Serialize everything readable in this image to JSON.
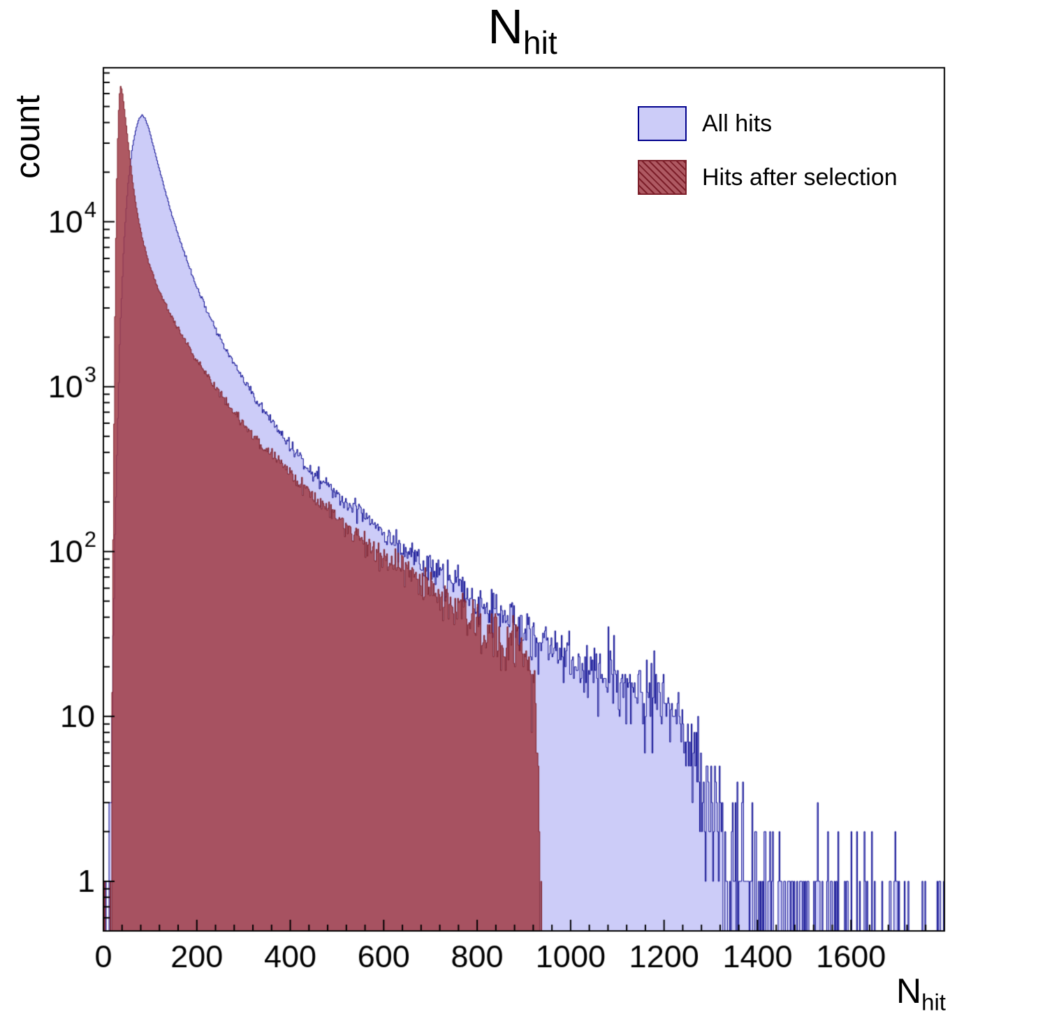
{
  "chart_data": {
    "type": "histogram",
    "title": "N_hit",
    "title_main": "N",
    "title_sub": "hit",
    "xlabel_main": "N",
    "xlabel_sub": "hit",
    "ylabel": "count",
    "x_axis": {
      "min": 0,
      "max": 1800,
      "major_ticks": [
        0,
        200,
        400,
        600,
        800,
        1000,
        1200,
        1400,
        1600
      ],
      "minor_tick_step": 40
    },
    "y_axis": {
      "scale": "log",
      "min": 0.5,
      "max": 86000,
      "tick_labels": [
        {
          "value": 1,
          "text": "1"
        },
        {
          "value": 10,
          "text": "10"
        },
        {
          "value": 100,
          "text": "10",
          "exp": "2"
        },
        {
          "value": 1000,
          "text": "10",
          "exp": "3"
        },
        {
          "value": 10000,
          "text": "10",
          "exp": "4"
        }
      ]
    },
    "legend": {
      "entries": [
        {
          "label": "All hits"
        },
        {
          "label": "Hits after selection"
        }
      ]
    },
    "bin_width": 2,
    "noise_seed": 42,
    "series": [
      {
        "name": "All hits",
        "fill_color": "#ccccf8",
        "edge_color": "#00008c",
        "fill_alpha": 1.0,
        "x_max": 1800,
        "peak": {
          "x": 83,
          "count": 44500
        },
        "envelope_points": [
          [
            8,
            0.3
          ],
          [
            14,
            2
          ],
          [
            20,
            25
          ],
          [
            28,
            300
          ],
          [
            36,
            2200
          ],
          [
            44,
            7500
          ],
          [
            52,
            16000
          ],
          [
            60,
            26000
          ],
          [
            68,
            35000
          ],
          [
            76,
            42000
          ],
          [
            83,
            44500
          ],
          [
            90,
            42000
          ],
          [
            98,
            36000
          ],
          [
            107,
            29000
          ],
          [
            117,
            22500
          ],
          [
            127,
            17500
          ],
          [
            137,
            13800
          ],
          [
            147,
            11000
          ],
          [
            158,
            8700
          ],
          [
            170,
            6900
          ],
          [
            182,
            5500
          ],
          [
            195,
            4400
          ],
          [
            210,
            3450
          ],
          [
            225,
            2750
          ],
          [
            240,
            2250
          ],
          [
            258,
            1780
          ],
          [
            276,
            1430
          ],
          [
            295,
            1160
          ],
          [
            315,
            940
          ],
          [
            335,
            775
          ],
          [
            355,
            645
          ],
          [
            378,
            525
          ],
          [
            400,
            440
          ],
          [
            425,
            365
          ],
          [
            450,
            305
          ],
          [
            475,
            258
          ],
          [
            500,
            220
          ],
          [
            525,
            190
          ],
          [
            550,
            180
          ],
          [
            575,
            155
          ],
          [
            600,
            134
          ],
          [
            625,
            116
          ],
          [
            650,
            101
          ],
          [
            675,
            89
          ],
          [
            700,
            79
          ],
          [
            725,
            70
          ],
          [
            750,
            63
          ],
          [
            775,
            56
          ],
          [
            800,
            50
          ],
          [
            825,
            45
          ],
          [
            850,
            41
          ],
          [
            875,
            37
          ],
          [
            900,
            33
          ],
          [
            925,
            30
          ],
          [
            950,
            28
          ],
          [
            975,
            25
          ],
          [
            1000,
            23
          ],
          [
            1040,
            20
          ],
          [
            1080,
            18
          ],
          [
            1120,
            16.5
          ],
          [
            1160,
            15
          ],
          [
            1200,
            14
          ],
          [
            1230,
            10
          ],
          [
            1255,
            7
          ],
          [
            1280,
            4.5
          ],
          [
            1305,
            3
          ],
          [
            1330,
            2
          ],
          [
            1360,
            1.4
          ],
          [
            1400,
            0.9
          ],
          [
            1450,
            0.55
          ],
          [
            1500,
            0.4
          ],
          [
            1550,
            0.3
          ],
          [
            1600,
            0.25
          ],
          [
            1650,
            0.2
          ],
          [
            1700,
            0.2
          ],
          [
            1750,
            0.25
          ],
          [
            1795,
            0.6
          ]
        ]
      },
      {
        "name": "Hits after selection",
        "fill_color": "#a03c46",
        "edge_color": "#7d1f2a",
        "fill_alpha": 0.85,
        "x_max": 960,
        "peak": {
          "x": 36,
          "count": 68000
        },
        "envelope_points": [
          [
            16,
            0.5
          ],
          [
            20,
            40
          ],
          [
            24,
            1500
          ],
          [
            28,
            14000
          ],
          [
            32,
            42000
          ],
          [
            36,
            68000
          ],
          [
            40,
            63000
          ],
          [
            45,
            48000
          ],
          [
            50,
            36000
          ],
          [
            56,
            25500
          ],
          [
            62,
            18200
          ],
          [
            70,
            12600
          ],
          [
            78,
            9400
          ],
          [
            87,
            7200
          ],
          [
            97,
            5700
          ],
          [
            107,
            4700
          ],
          [
            118,
            3900
          ],
          [
            130,
            3300
          ],
          [
            142,
            2800
          ],
          [
            155,
            2380
          ],
          [
            170,
            2000
          ],
          [
            185,
            1700
          ],
          [
            200,
            1460
          ],
          [
            220,
            1190
          ],
          [
            240,
            990
          ],
          [
            260,
            830
          ],
          [
            280,
            700
          ],
          [
            300,
            595
          ],
          [
            320,
            510
          ],
          [
            340,
            440
          ],
          [
            360,
            382
          ],
          [
            385,
            322
          ],
          [
            410,
            274
          ],
          [
            435,
            235
          ],
          [
            460,
            202
          ],
          [
            485,
            175
          ],
          [
            510,
            152
          ],
          [
            535,
            132
          ],
          [
            560,
            116
          ],
          [
            585,
            101
          ],
          [
            610,
            89
          ],
          [
            635,
            79
          ],
          [
            660,
            70
          ],
          [
            685,
            62
          ],
          [
            710,
            55
          ],
          [
            735,
            49
          ],
          [
            760,
            44
          ],
          [
            785,
            39
          ],
          [
            810,
            35
          ],
          [
            835,
            31
          ],
          [
            860,
            28
          ],
          [
            885,
            25
          ],
          [
            905,
            22
          ],
          [
            915,
            19
          ],
          [
            922,
            15
          ],
          [
            927,
            10
          ],
          [
            931,
            5
          ],
          [
            934,
            1.5
          ],
          [
            937,
            0.2
          ],
          [
            941,
            0.02
          ],
          [
            960,
            0.0
          ]
        ]
      }
    ],
    "frame_color": "#000000",
    "text_color": "#000000",
    "background_color": "#ffffff"
  }
}
